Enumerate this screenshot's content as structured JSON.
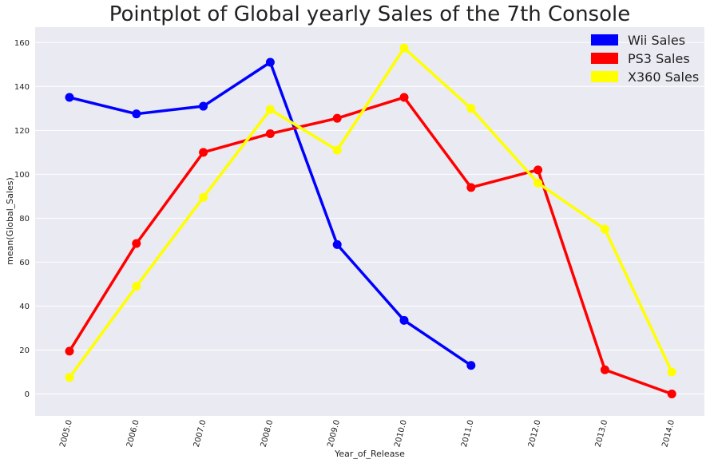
{
  "chart_data": {
    "type": "line",
    "title": "Pointplot of Global yearly Sales of the 7th Console",
    "xlabel": "Year_of_Release",
    "ylabel": "mean(Global_Sales)",
    "ylim": [
      -10,
      167
    ],
    "yticks": [
      0,
      20,
      40,
      60,
      80,
      100,
      120,
      140,
      160
    ],
    "categories": [
      "2005.0",
      "2006.0",
      "2007.0",
      "2008.0",
      "2009.0",
      "2010.0",
      "2011.0",
      "2012.0",
      "2013.0",
      "2014.0"
    ],
    "grid": true,
    "legend_position": "top-right",
    "series": [
      {
        "name": "Wii Sales",
        "color": "#0000ff",
        "values": [
          135,
          127.5,
          131,
          151,
          68,
          33.5,
          13,
          null,
          null,
          null
        ]
      },
      {
        "name": "PS3 Sales",
        "color": "#ff0000",
        "values": [
          19.5,
          68.5,
          110,
          118.5,
          125.5,
          135,
          94,
          102,
          11,
          0
        ]
      },
      {
        "name": "X360 Sales",
        "color": "#ffff00",
        "values": [
          7.5,
          49,
          89.5,
          129.5,
          111,
          157.5,
          130,
          96,
          75,
          10
        ]
      }
    ]
  }
}
